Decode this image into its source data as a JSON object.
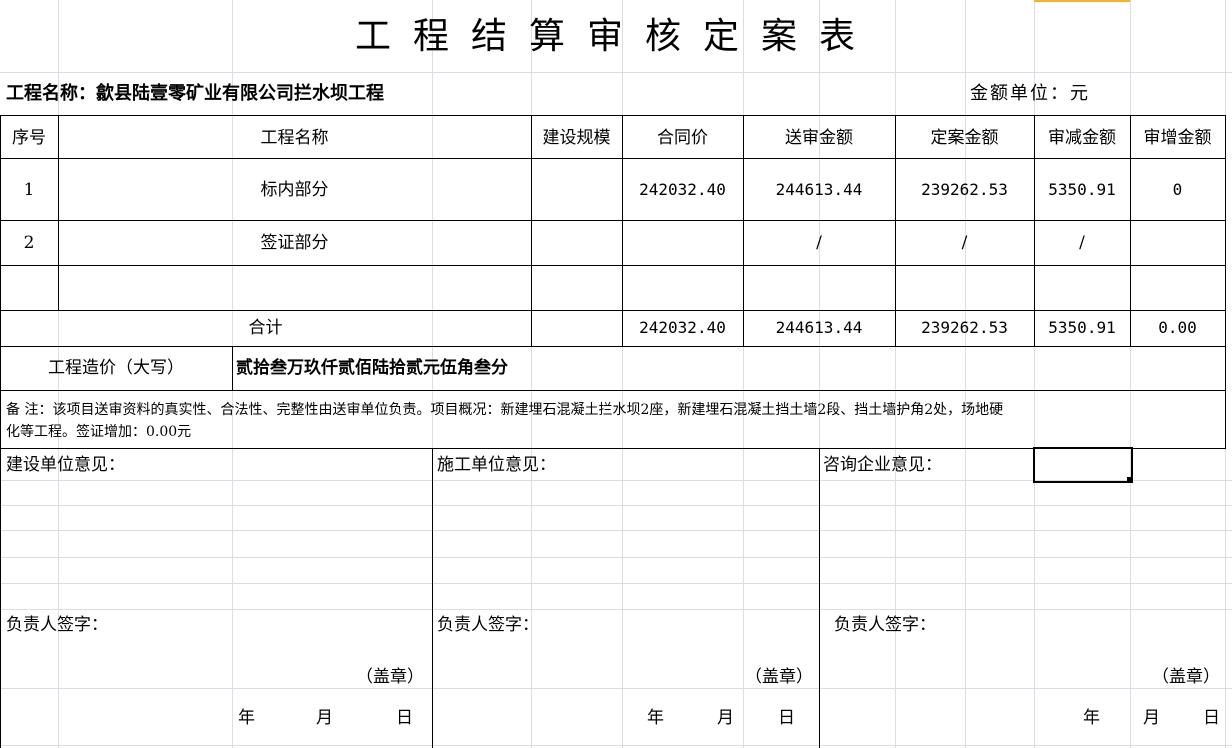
{
  "title": "工程结算审核定案表",
  "project_label": "工程名称：歙县陆壹零矿业有限公司拦水坝工程",
  "unit_label": "金额单位：元",
  "headers": [
    "序号",
    "工程名称",
    "建设规模",
    "合同价",
    "送审金额",
    "定案金额",
    "审减金额",
    "审增金额"
  ],
  "rows": [
    {
      "no": "1",
      "name": "标内部分",
      "scale": "",
      "contract": "242032.40",
      "submitted": "244613.44",
      "approved": "239262.53",
      "reduced": "5350.91",
      "increased": "0"
    },
    {
      "no": "2",
      "name": "签证部分",
      "scale": "",
      "contract": "",
      "submitted": "/",
      "approved": "/",
      "reduced": "/",
      "increased": ""
    },
    {
      "no": "",
      "name": "",
      "scale": "",
      "contract": "",
      "submitted": "",
      "approved": "",
      "reduced": "",
      "increased": ""
    }
  ],
  "total": {
    "label": "合计",
    "contract": "242032.40",
    "submitted": "244613.44",
    "approved": "239262.53",
    "reduced": "5350.91",
    "increased": "0.00"
  },
  "capital": {
    "label": "工程造价（大写）",
    "value": "贰拾叁万玖仟贰佰陆拾贰元伍角叁分"
  },
  "note": {
    "line1": "备  注：该项目送审资料的真实性、合法性、完整性由送审单位负责。项目概况：新建埋石混凝土拦水坝2座，新建埋石混凝土挡土墙2段、挡土墙护角2处，场地硬",
    "line2": "化等工程。签证增加：0.00元"
  },
  "opinions": [
    {
      "label": "建设单位意见：",
      "sign": "负责人签字：",
      "seal": "（盖章）",
      "year": "年",
      "month": "月",
      "day": "日"
    },
    {
      "label": "施工单位意见：",
      "sign": "负责人签字：",
      "seal": "（盖章）",
      "year": "年",
      "month": "月",
      "day": "日"
    },
    {
      "label": "咨询企业意见：",
      "sign": "负责人签字：",
      "seal": "（盖章）",
      "year": "年",
      "month": "月",
      "day": "日"
    }
  ]
}
